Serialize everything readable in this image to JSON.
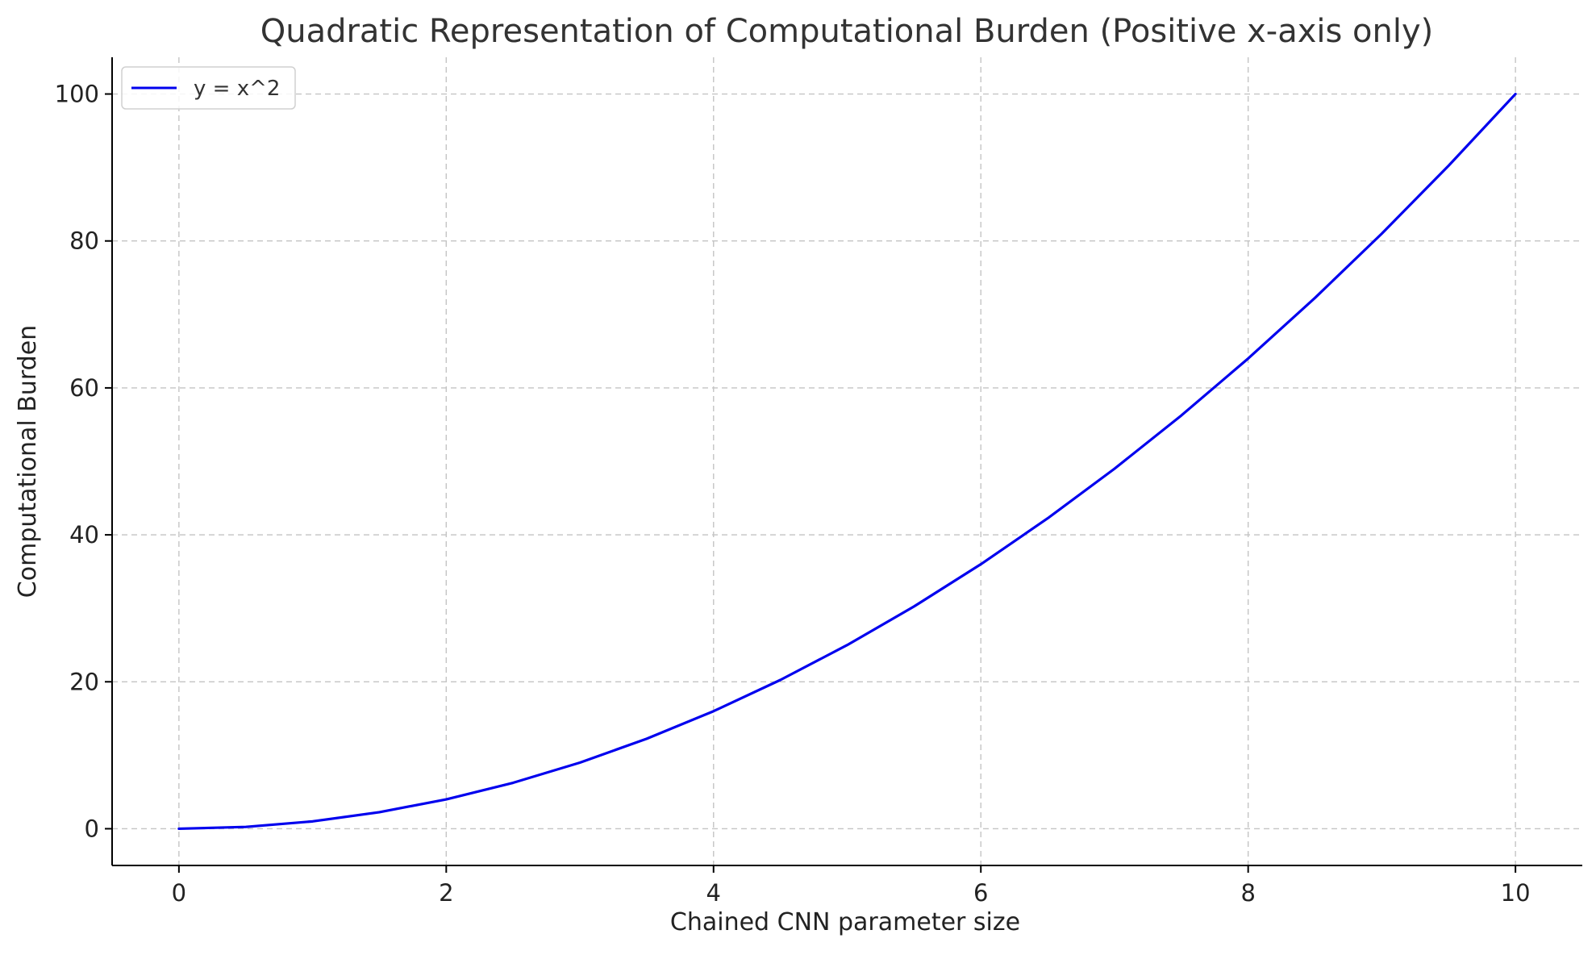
{
  "chart_data": {
    "type": "line",
    "title": "Quadratic Representation of Computational Burden (Positive x-axis only)",
    "xlabel": "Chained CNN parameter size",
    "ylabel": "Computational Burden",
    "xlim": [
      -0.5,
      10.5
    ],
    "ylim": [
      -5,
      105
    ],
    "xticks": [
      0,
      2,
      4,
      6,
      8,
      10
    ],
    "xtick_labels": [
      "0",
      "2",
      "4",
      "6",
      "8",
      "10"
    ],
    "yticks": [
      0,
      20,
      40,
      60,
      80,
      100
    ],
    "ytick_labels": [
      "0",
      "20",
      "40",
      "60",
      "80",
      "100"
    ],
    "grid": true,
    "legend_position": "top-left",
    "series": [
      {
        "name": "y = x^2",
        "color": "#0000ee",
        "x": [
          0,
          0.5,
          1,
          1.5,
          2,
          2.5,
          3,
          3.5,
          4,
          4.5,
          5,
          5.5,
          6,
          6.5,
          7,
          7.5,
          8,
          8.5,
          9,
          9.5,
          10
        ],
        "y": [
          0,
          0.25,
          1,
          2.25,
          4,
          6.25,
          9,
          12.25,
          16,
          20.25,
          25,
          30.25,
          36,
          42.25,
          49,
          56.25,
          64,
          72.25,
          81,
          90.25,
          100
        ]
      }
    ]
  }
}
